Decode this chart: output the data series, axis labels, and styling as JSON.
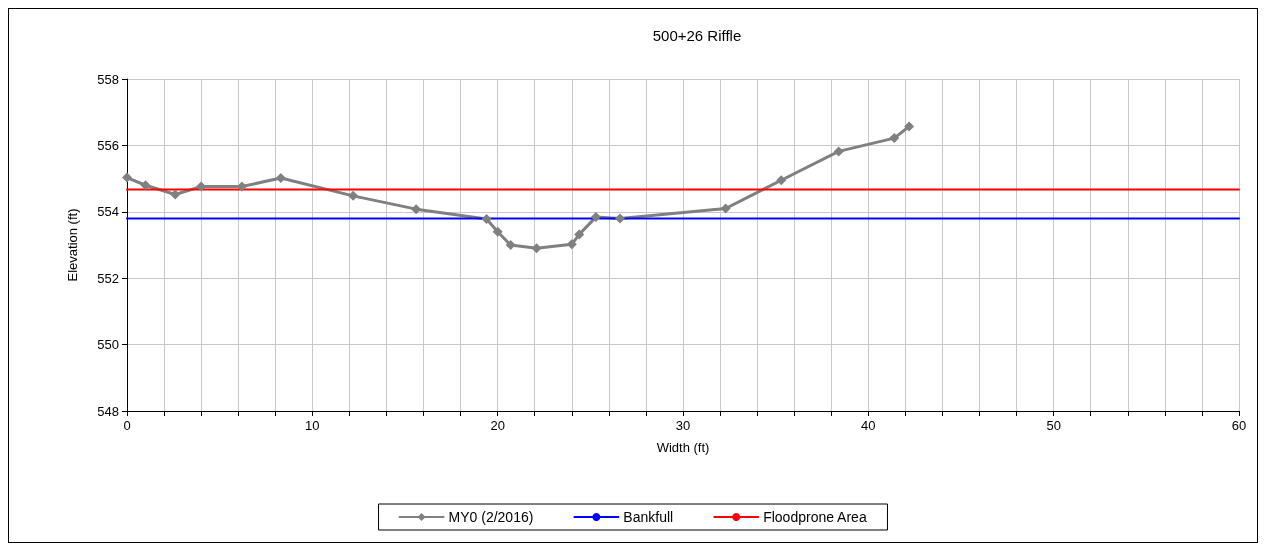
{
  "chart_data": {
    "type": "line",
    "title": "500+26 Riffle",
    "xlabel": "Width (ft)",
    "ylabel": "Elevation (ft)",
    "series": [
      {
        "name": "MY0 (2/2016)",
        "color": "#808080",
        "marker": "diamond",
        "x": [
          0,
          1,
          2.6,
          4,
          6.2,
          8.3,
          12.2,
          15.6,
          19.4,
          20,
          20.7,
          22.1,
          24,
          24.4,
          25.3,
          26.6,
          32.3,
          35.3,
          38.4,
          41.4,
          42.2
        ],
        "values": [
          555.03,
          554.8,
          554.52,
          554.76,
          554.76,
          555.02,
          554.48,
          554.08,
          553.78,
          553.4,
          553.0,
          552.9,
          553.02,
          553.32,
          553.84,
          553.8,
          554.1,
          554.95,
          555.82,
          556.22,
          556.57
        ]
      },
      {
        "name": "Bankfull",
        "color": "#0000ff",
        "marker": "none",
        "x": [
          0,
          60
        ],
        "values": [
          553.8,
          553.8
        ]
      },
      {
        "name": "Floodprone Area",
        "color": "#ff0000",
        "marker": "none",
        "x": [
          0,
          60
        ],
        "values": [
          554.67,
          554.67
        ]
      }
    ],
    "xlim": [
      0,
      60
    ],
    "xticks": [
      0,
      {
        "value": 2,
        "label": null
      },
      {
        "value": 4,
        "label": null
      },
      {
        "value": 6,
        "label": null
      },
      {
        "value": 8,
        "label": null
      },
      10,
      {
        "value": 12,
        "label": null
      },
      {
        "value": 14,
        "label": null
      },
      {
        "value": 16,
        "label": null
      },
      {
        "value": 18,
        "label": null
      },
      20,
      {
        "value": 22,
        "label": null
      },
      {
        "value": 24,
        "label": null
      },
      {
        "value": 26,
        "label": null
      },
      {
        "value": 28,
        "label": null
      },
      30,
      {
        "value": 32,
        "label": null
      },
      {
        "value": 34,
        "label": null
      },
      {
        "value": 36,
        "label": null
      },
      {
        "value": 38,
        "label": null
      },
      40,
      {
        "value": 42,
        "label": null
      },
      {
        "value": 44,
        "label": null
      },
      {
        "value": 46,
        "label": null
      },
      {
        "value": 48,
        "label": null
      },
      50,
      {
        "value": 52,
        "label": null
      },
      {
        "value": 54,
        "label": null
      },
      {
        "value": 56,
        "label": null
      },
      {
        "value": 58,
        "label": null
      },
      60
    ],
    "ylim": [
      548,
      558
    ],
    "yticks": [
      548,
      550,
      552,
      554,
      556,
      558
    ],
    "grid": true,
    "legend": "bottom",
    "line_style": "solid"
  }
}
